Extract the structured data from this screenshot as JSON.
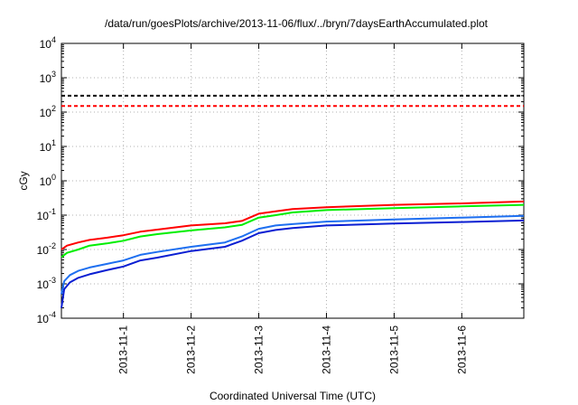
{
  "chart_data": {
    "type": "line",
    "title": "/data/run/goesPlots/archive/2013-11-06/flux/../bryn/7daysEarthAccumulated.plot",
    "xlabel": "Coordinated Universal Time (UTC)",
    "ylabel": "cGy",
    "x_range": [
      "2013-10-31 02:00",
      "2013-11-06 22:00"
    ],
    "y_scale": "log",
    "ylim": [
      0.0001,
      10000
    ],
    "grid": true,
    "x_ticks": [
      {
        "t": "2013-11-01 00:00",
        "label": "2013-11-1"
      },
      {
        "t": "2013-11-02 00:00",
        "label": "2013-11-2"
      },
      {
        "t": "2013-11-03 00:00",
        "label": "2013-11-3"
      },
      {
        "t": "2013-11-04 00:00",
        "label": "2013-11-4"
      },
      {
        "t": "2013-11-05 00:00",
        "label": "2013-11-5"
      },
      {
        "t": "2013-11-06 00:00",
        "label": "2013-11-6"
      }
    ],
    "y_ticks": [
      {
        "v": 0.0001,
        "mant": "10",
        "exp": "-4"
      },
      {
        "v": 0.001,
        "mant": "10",
        "exp": "-3"
      },
      {
        "v": 0.01,
        "mant": "10",
        "exp": "-2"
      },
      {
        "v": 0.1,
        "mant": "10",
        "exp": "-1"
      },
      {
        "v": 1,
        "mant": "10",
        "exp": "0"
      },
      {
        "v": 10,
        "mant": "10",
        "exp": "1"
      },
      {
        "v": 100,
        "mant": "10",
        "exp": "2"
      },
      {
        "v": 1000,
        "mant": "10",
        "exp": "3"
      },
      {
        "v": 10000,
        "mant": "10",
        "exp": "4"
      }
    ],
    "reference_lines": [
      {
        "y": 300,
        "color": "#000000",
        "style": "dashed"
      },
      {
        "y": 150,
        "color": "#ff0000",
        "style": "dashed"
      }
    ],
    "series": [
      {
        "color": "#ff0000",
        "points": [
          [
            "2013-10-31 02:00",
            0.01
          ],
          [
            "2013-10-31 04:00",
            0.013
          ],
          [
            "2013-10-31 08:00",
            0.016
          ],
          [
            "2013-10-31 12:00",
            0.019
          ],
          [
            "2013-10-31 18:00",
            0.022
          ],
          [
            "2013-11-01 00:00",
            0.026
          ],
          [
            "2013-11-01 06:00",
            0.033
          ],
          [
            "2013-11-01 12:00",
            0.038
          ],
          [
            "2013-11-02 00:00",
            0.05
          ],
          [
            "2013-11-02 12:00",
            0.058
          ],
          [
            "2013-11-02 18:00",
            0.068
          ],
          [
            "2013-11-03 00:00",
            0.11
          ],
          [
            "2013-11-03 06:00",
            0.13
          ],
          [
            "2013-11-03 12:00",
            0.15
          ],
          [
            "2013-11-04 00:00",
            0.17
          ],
          [
            "2013-11-05 00:00",
            0.2
          ],
          [
            "2013-11-06 00:00",
            0.22
          ],
          [
            "2013-11-06 22:00",
            0.25
          ]
        ]
      },
      {
        "color": "#00ee00",
        "points": [
          [
            "2013-10-31 02:00",
            0.006
          ],
          [
            "2013-10-31 04:00",
            0.008
          ],
          [
            "2013-10-31 08:00",
            0.01
          ],
          [
            "2013-10-31 12:00",
            0.013
          ],
          [
            "2013-10-31 18:00",
            0.015
          ],
          [
            "2013-11-01 00:00",
            0.018
          ],
          [
            "2013-11-01 06:00",
            0.024
          ],
          [
            "2013-11-01 12:00",
            0.028
          ],
          [
            "2013-11-02 00:00",
            0.036
          ],
          [
            "2013-11-02 12:00",
            0.044
          ],
          [
            "2013-11-02 18:00",
            0.052
          ],
          [
            "2013-11-03 00:00",
            0.085
          ],
          [
            "2013-11-03 06:00",
            0.1
          ],
          [
            "2013-11-03 12:00",
            0.12
          ],
          [
            "2013-11-04 00:00",
            0.14
          ],
          [
            "2013-11-05 00:00",
            0.16
          ],
          [
            "2013-11-06 00:00",
            0.18
          ],
          [
            "2013-11-06 22:00",
            0.2
          ]
        ]
      },
      {
        "color": "#1e6ff0",
        "points": [
          [
            "2013-10-31 02:00",
            0.0005
          ],
          [
            "2013-10-31 03:00",
            0.0012
          ],
          [
            "2013-10-31 05:00",
            0.0018
          ],
          [
            "2013-10-31 08:00",
            0.0024
          ],
          [
            "2013-10-31 12:00",
            0.003
          ],
          [
            "2013-10-31 18:00",
            0.0038
          ],
          [
            "2013-11-01 00:00",
            0.0048
          ],
          [
            "2013-11-01 06:00",
            0.007
          ],
          [
            "2013-11-01 12:00",
            0.0085
          ],
          [
            "2013-11-02 00:00",
            0.012
          ],
          [
            "2013-11-02 12:00",
            0.016
          ],
          [
            "2013-11-02 18:00",
            0.024
          ],
          [
            "2013-11-03 00:00",
            0.04
          ],
          [
            "2013-11-03 06:00",
            0.05
          ],
          [
            "2013-11-03 12:00",
            0.055
          ],
          [
            "2013-11-04 00:00",
            0.065
          ],
          [
            "2013-11-05 00:00",
            0.075
          ],
          [
            "2013-11-06 00:00",
            0.085
          ],
          [
            "2013-11-06 22:00",
            0.095
          ]
        ]
      },
      {
        "color": "#0a1ed2",
        "points": [
          [
            "2013-10-31 02:00",
            0.0002
          ],
          [
            "2013-10-31 03:00",
            0.0007
          ],
          [
            "2013-10-31 05:00",
            0.0011
          ],
          [
            "2013-10-31 08:00",
            0.0015
          ],
          [
            "2013-10-31 12:00",
            0.0019
          ],
          [
            "2013-10-31 18:00",
            0.0025
          ],
          [
            "2013-11-01 00:00",
            0.0032
          ],
          [
            "2013-11-01 06:00",
            0.0048
          ],
          [
            "2013-11-01 12:00",
            0.0058
          ],
          [
            "2013-11-02 00:00",
            0.009
          ],
          [
            "2013-11-02 12:00",
            0.012
          ],
          [
            "2013-11-02 18:00",
            0.018
          ],
          [
            "2013-11-03 00:00",
            0.03
          ],
          [
            "2013-11-03 06:00",
            0.037
          ],
          [
            "2013-11-03 12:00",
            0.042
          ],
          [
            "2013-11-04 00:00",
            0.05
          ],
          [
            "2013-11-05 00:00",
            0.057
          ],
          [
            "2013-11-06 00:00",
            0.063
          ],
          [
            "2013-11-06 22:00",
            0.07
          ]
        ]
      }
    ]
  }
}
